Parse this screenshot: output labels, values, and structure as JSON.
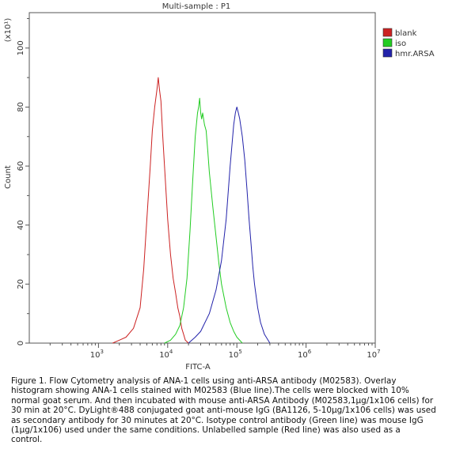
{
  "chart_data": {
    "type": "line",
    "title": "Multi-sample : P1",
    "xlabel": "FITC-A",
    "ylabel": "Count",
    "y_multiplier_label": "(x10¹)",
    "x_scale": "log",
    "xlim": [
      100,
      10000000
    ],
    "ylim": [
      0,
      112
    ],
    "x_tick_labels": [
      {
        "value": 1000,
        "base": "10",
        "exp": "3"
      },
      {
        "value": 10000,
        "base": "10",
        "exp": "4"
      },
      {
        "value": 100000,
        "base": "10",
        "exp": "5"
      },
      {
        "value": 1000000,
        "base": "10",
        "exp": "6"
      },
      {
        "value": 10000000,
        "base": "10",
        "exp": "7"
      }
    ],
    "y_ticks": [
      0,
      20,
      40,
      60,
      80,
      100
    ],
    "legend_position": "top-right",
    "series": [
      {
        "name": "blank",
        "color": "#cc2222",
        "x": [
          1600,
          2000,
          2500,
          3200,
          4000,
          4500,
          5000,
          5600,
          6000,
          6500,
          7000,
          7300,
          7600,
          8000,
          8500,
          9000,
          10000,
          11000,
          12000,
          13000,
          14000,
          15000,
          16000,
          17000,
          18000,
          20000
        ],
        "y": [
          0,
          1,
          2,
          5,
          12,
          25,
          42,
          60,
          72,
          80,
          86,
          90,
          86,
          82,
          70,
          60,
          42,
          30,
          22,
          17,
          12,
          9,
          5,
          3,
          1,
          0
        ]
      },
      {
        "name": "iso",
        "color": "#22cc22",
        "x": [
          9000,
          11000,
          13000,
          15000,
          17000,
          19000,
          21000,
          23000,
          25000,
          27000,
          28000,
          29000,
          30000,
          31000,
          32000,
          34000,
          36000,
          38000,
          40000,
          45000,
          50000,
          55000,
          60000,
          70000,
          80000,
          90000,
          100000,
          120000
        ],
        "y": [
          0,
          1,
          3,
          6,
          12,
          22,
          38,
          55,
          70,
          78,
          80,
          83,
          78,
          76,
          78,
          74,
          72,
          65,
          58,
          46,
          36,
          27,
          20,
          12,
          7,
          4,
          2,
          0
        ]
      },
      {
        "name": "hmr.ARSA",
        "color": "#2222aa",
        "x": [
          20000,
          25000,
          30000,
          40000,
          50000,
          60000,
          70000,
          80000,
          90000,
          95000,
          100000,
          105000,
          110000,
          120000,
          130000,
          140000,
          150000,
          160000,
          170000,
          180000,
          200000,
          220000,
          250000,
          300000
        ],
        "y": [
          0,
          2,
          4,
          10,
          18,
          28,
          42,
          60,
          74,
          78,
          80,
          78,
          76,
          70,
          62,
          52,
          42,
          34,
          26,
          20,
          12,
          7,
          3,
          0
        ]
      }
    ]
  },
  "caption": {
    "lines": [
      "Figure 1. Flow Cytometry analysis of ANA-1 cells using anti-ARSA antibody (M02583). Overlay",
      "histogram showing ANA-1 cells stained with M02583 (Blue line).The cells were blocked with 10%",
      "normal goat serum. And then incubated with mouse anti-ARSA Antibody (M02583,1μg/1x106 cells) for",
      "30 min at 20°C. DyLight®488 conjugated goat anti-mouse IgG (BA1126, 5-10μg/1x106 cells) was used",
      "as secondary antibody for 30 minutes at 20°C. Isotype control antibody (Green line) was mouse IgG",
      "(1μg/1x106) used under the same conditions. Unlabelled sample (Red line) was also used as a",
      "control."
    ]
  }
}
